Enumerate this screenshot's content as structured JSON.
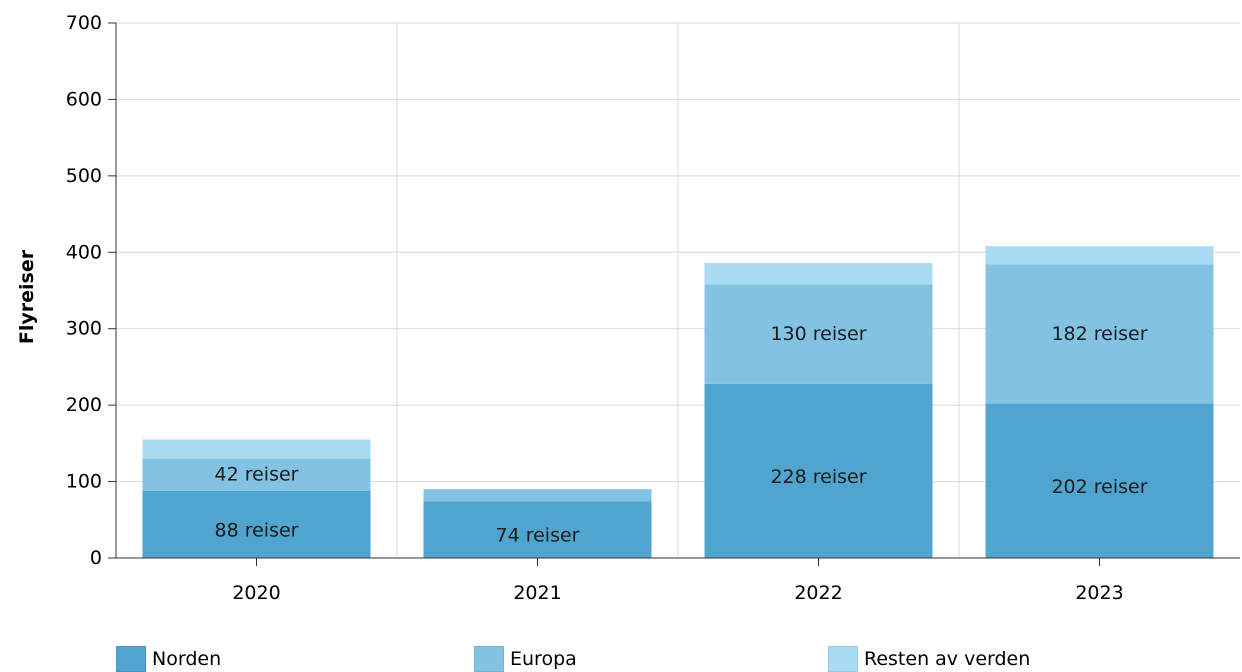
{
  "chart_data": {
    "type": "bar",
    "stacked": true,
    "categories": [
      "2020",
      "2021",
      "2022",
      "2023"
    ],
    "series": [
      {
        "name": "Norden",
        "color": "#4fa5cf",
        "values": [
          88,
          74,
          228,
          202
        ],
        "labels": [
          "88 reiser",
          "74 reiser",
          "228 reiser",
          "202 reiser"
        ]
      },
      {
        "name": "Europa",
        "color": "#82c3e3",
        "values": [
          42,
          16,
          130,
          182
        ],
        "labels": [
          "42 reiser",
          "",
          "130 reiser",
          "182 reiser"
        ]
      },
      {
        "name": "Resten av verden",
        "color": "#a9dbf2",
        "values": [
          25,
          0,
          28,
          24
        ],
        "labels": [
          "",
          "",
          "",
          ""
        ]
      }
    ],
    "xlabel": "",
    "ylabel": "Flyreiser",
    "ylim": [
      0,
      700
    ],
    "yticks": [
      "0",
      "100",
      "200",
      "300",
      "400",
      "500",
      "600",
      "700"
    ],
    "grid": true,
    "legend_position": "bottom"
  }
}
